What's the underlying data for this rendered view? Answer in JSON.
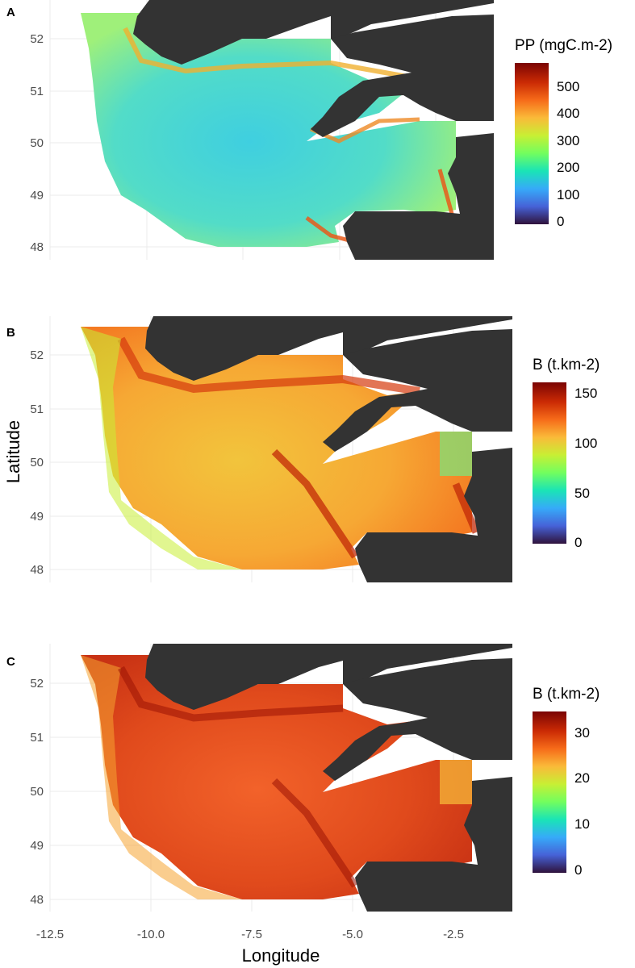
{
  "figure": {
    "x_axis_title": "Longitude",
    "y_axis_title": "Latitude",
    "x_ticks": [
      "-12.5",
      "-10.0",
      "-7.5",
      "-5.0",
      "-2.5"
    ],
    "y_ticks": [
      "52",
      "51",
      "50",
      "49",
      "48"
    ]
  },
  "panels": [
    {
      "letter": "A",
      "legend_title": "PP (mgC.m-2)",
      "legend_ticks": [
        "500",
        "400",
        "300",
        "200",
        "100",
        "0"
      ]
    },
    {
      "letter": "B",
      "legend_title": "B (t.km-2)",
      "legend_ticks": [
        "150",
        "100",
        "50",
        "0"
      ]
    },
    {
      "letter": "C",
      "legend_title": "B (t.km-2)",
      "legend_ticks": [
        "30",
        "20",
        "10",
        "0"
      ]
    }
  ],
  "colors": {
    "land": "#333333",
    "scale": [
      "#30123b",
      "#4662d7",
      "#36aaf9",
      "#1ae4b6",
      "#72fe5e",
      "#c8ef34",
      "#faba39",
      "#f66b19",
      "#ca2a04",
      "#7a0403"
    ]
  },
  "chart_data": [
    {
      "type": "heatmap",
      "title": "A",
      "xlabel": "",
      "ylabel": "",
      "xlim": [
        -12.5,
        -1.5
      ],
      "ylim": [
        47.8,
        52.6
      ],
      "x_ticks": [
        -12.5,
        -10.0,
        -7.5,
        -5.0,
        -2.5
      ],
      "y_ticks": [
        52,
        51,
        50,
        49,
        48
      ],
      "legend": {
        "title": "PP (mgC.m-2)",
        "range": [
          0,
          580
        ],
        "breaks": [
          0,
          100,
          200,
          300,
          400,
          500
        ]
      },
      "typical_values": {
        "open_shelf": 260,
        "coastal_bands": 450,
        "max": 580
      }
    },
    {
      "type": "heatmap",
      "title": "B",
      "xlabel": "",
      "ylabel": "Latitude",
      "xlim": [
        -12.5,
        -1.5
      ],
      "ylim": [
        47.8,
        52.6
      ],
      "x_ticks": [
        -12.5,
        -10.0,
        -7.5,
        -5.0,
        -2.5
      ],
      "y_ticks": [
        52,
        51,
        50,
        49,
        48
      ],
      "legend": {
        "title": "B (t.km-2)",
        "range": [
          0,
          160
        ],
        "breaks": [
          0,
          50,
          100,
          150
        ]
      },
      "typical_values": {
        "open_shelf": 105,
        "coastal_bands": 140,
        "max": 160
      }
    },
    {
      "type": "heatmap",
      "title": "C",
      "xlabel": "Longitude",
      "ylabel": "",
      "xlim": [
        -12.5,
        -1.5
      ],
      "ylim": [
        47.8,
        52.6
      ],
      "x_ticks": [
        -12.5,
        -10.0,
        -7.5,
        -5.0,
        -2.5
      ],
      "y_ticks": [
        52,
        51,
        50,
        49,
        48
      ],
      "legend": {
        "title": "B (t.km-2)",
        "range": [
          0,
          34
        ],
        "breaks": [
          0,
          10,
          20,
          30
        ]
      },
      "typical_values": {
        "open_shelf": 27,
        "coastal_bands": 32,
        "max": 34
      }
    }
  ]
}
